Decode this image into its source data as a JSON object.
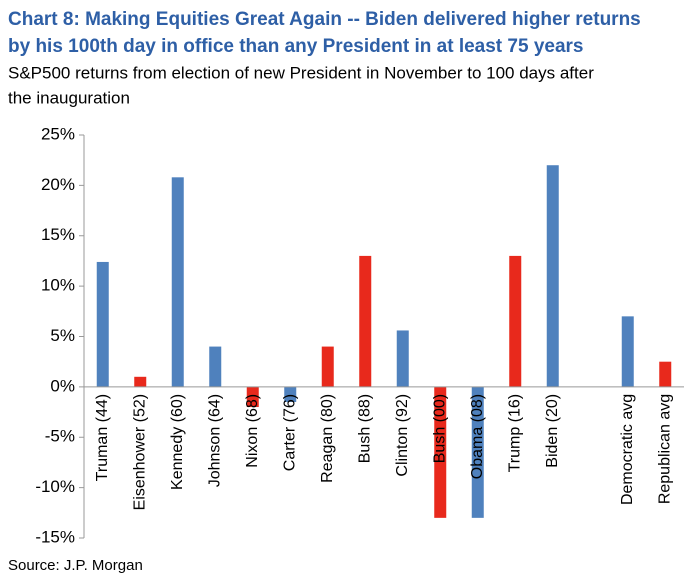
{
  "chart_data": {
    "type": "bar",
    "title_line1": "Chart 8: Making Equities Great Again -- Biden delivered higher returns",
    "title_line2": "by his 100th day in office than any President in at least 75 years",
    "subtitle_line1": "S&P500 returns from election of new President in November to 100 days after",
    "subtitle_line2": "the inauguration",
    "source": "Source: J.P. Morgan",
    "categories": [
      "Truman (44)",
      "Eisenhower (52)",
      "Kennedy (60)",
      "Johnson (64)",
      "Nixon (68)",
      "Carter (76)",
      "Reagan (80)",
      "Bush (88)",
      "Clinton (92)",
      "Bush (00)",
      "Obama (08)",
      "Trump (16)",
      "Biden (20)",
      null,
      "Democratic avg",
      "Republican avg"
    ],
    "values": [
      12.4,
      1.0,
      20.8,
      4.0,
      -2.0,
      -1.5,
      4.0,
      13.0,
      5.6,
      -13.0,
      -13.0,
      13.0,
      22.0,
      null,
      7.0,
      2.5
    ],
    "colors": [
      "#4f81bd",
      "#e8291c",
      "#4f81bd",
      "#4f81bd",
      "#e8291c",
      "#4f81bd",
      "#e8291c",
      "#e8291c",
      "#4f81bd",
      "#e8291c",
      "#4f81bd",
      "#e8291c",
      "#4f81bd",
      null,
      "#4f81bd",
      "#e8291c"
    ],
    "ylim": [
      -15,
      25
    ],
    "yticks": [
      {
        "value": -15,
        "label": "-15%"
      },
      {
        "value": -10,
        "label": "-10%"
      },
      {
        "value": -5,
        "label": "-5%"
      },
      {
        "value": 0,
        "label": "0%"
      },
      {
        "value": 5,
        "label": "5%"
      },
      {
        "value": 10,
        "label": "10%"
      },
      {
        "value": 15,
        "label": "15%"
      },
      {
        "value": 20,
        "label": "20%"
      },
      {
        "value": 25,
        "label": "25%"
      }
    ],
    "grid": false
  }
}
